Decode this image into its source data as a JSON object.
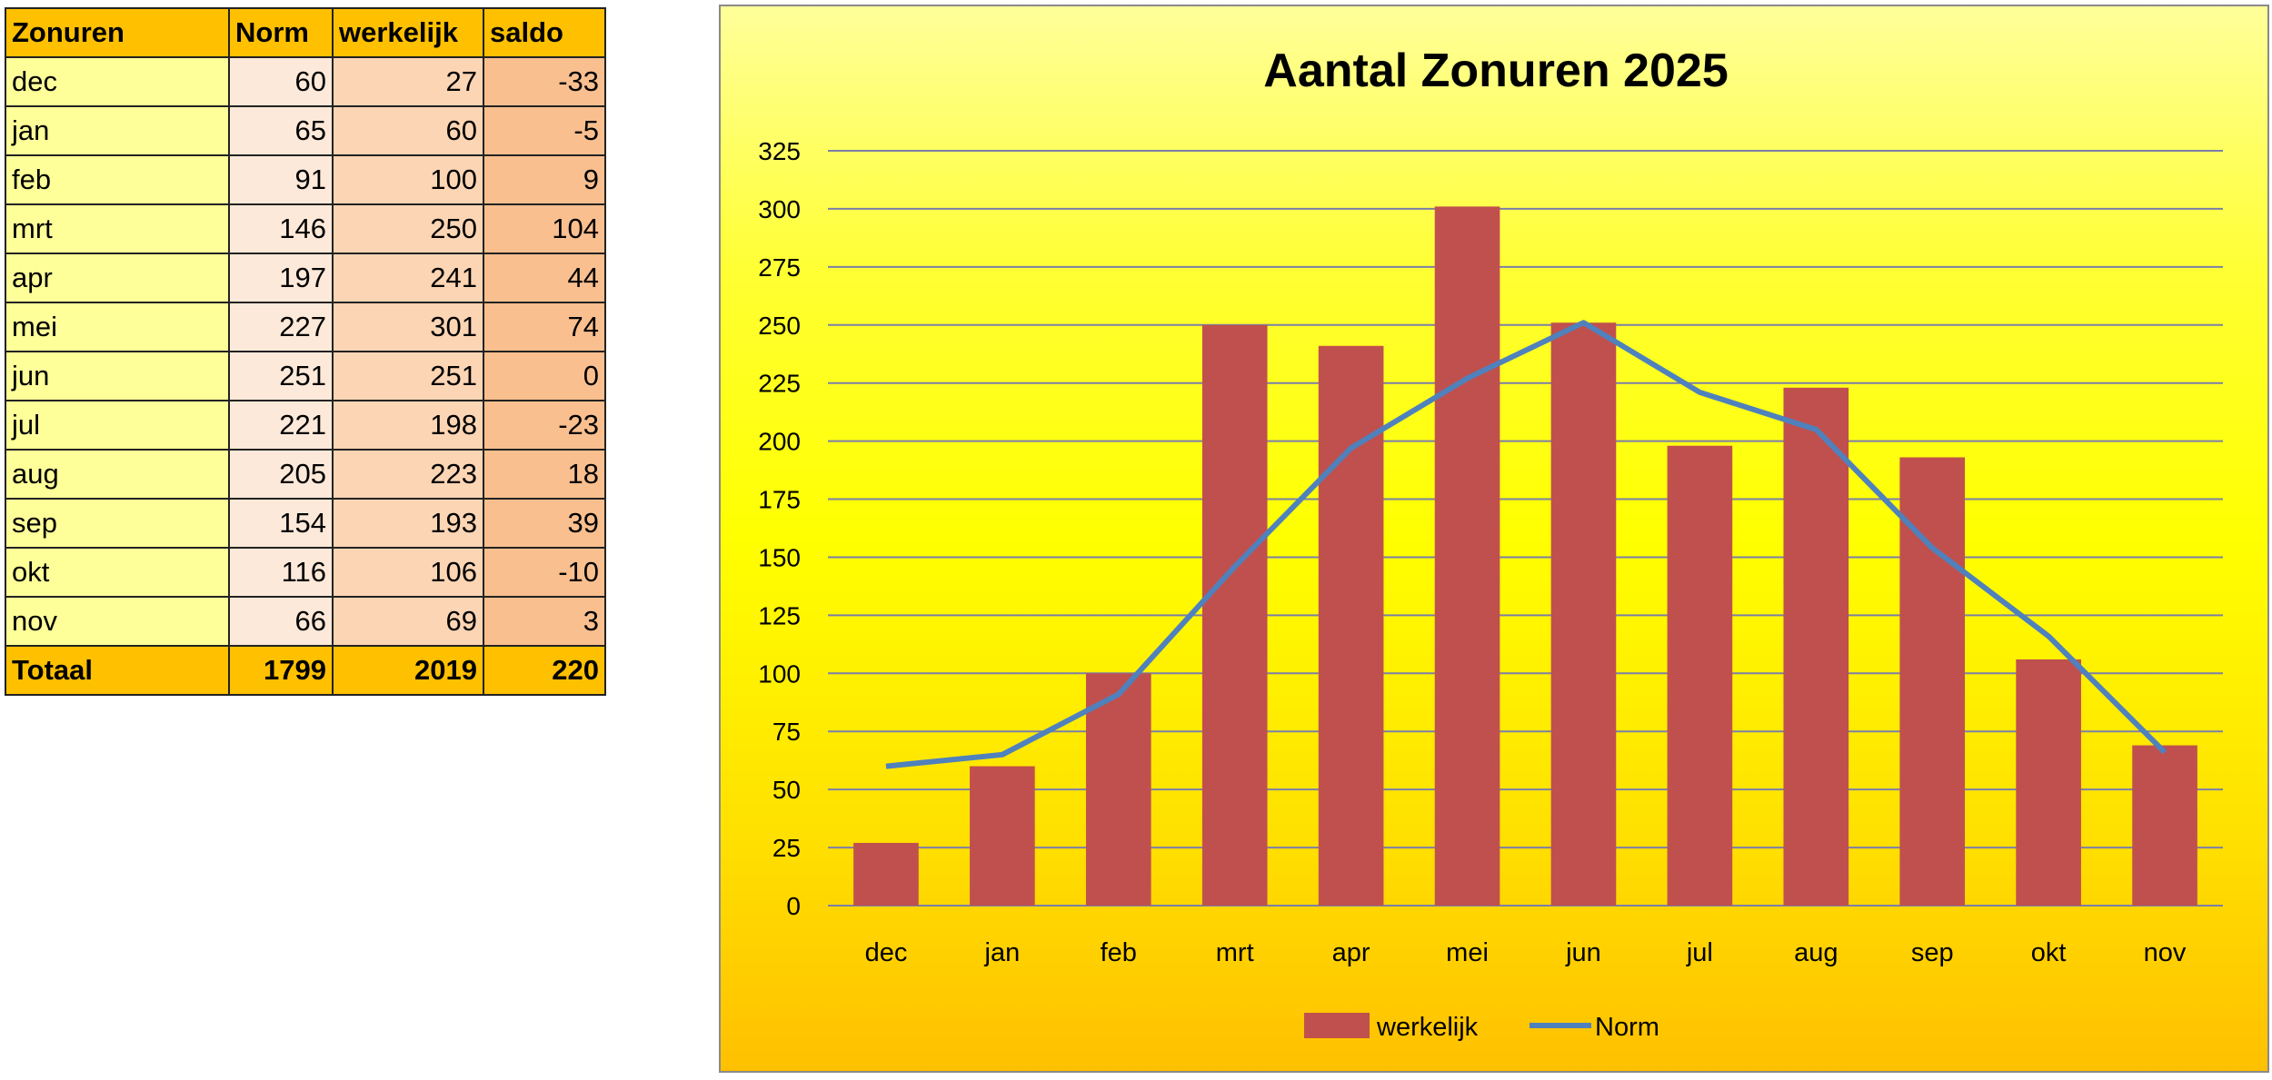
{
  "table": {
    "headers": [
      "Zonuren",
      "Norm",
      "werkelijk",
      "saldo"
    ],
    "rows": [
      [
        "dec",
        "60",
        "27",
        "-33"
      ],
      [
        "jan",
        "65",
        "60",
        "-5"
      ],
      [
        "feb",
        "91",
        "100",
        "9"
      ],
      [
        "mrt",
        "146",
        "250",
        "104"
      ],
      [
        "apr",
        "197",
        "241",
        "44"
      ],
      [
        "mei",
        "227",
        "301",
        "74"
      ],
      [
        "jun",
        "251",
        "251",
        "0"
      ],
      [
        "jul",
        "221",
        "198",
        "-23"
      ],
      [
        "aug",
        "205",
        "223",
        "18"
      ],
      [
        "sep",
        "154",
        "193",
        "39"
      ],
      [
        "okt",
        "116",
        "106",
        "-10"
      ],
      [
        "nov",
        "66",
        "69",
        "3"
      ]
    ],
    "total": [
      "Totaal",
      "1799",
      "2019",
      "220"
    ]
  },
  "chart_data": {
    "type": "bar",
    "title": "Aantal Zonuren 2025",
    "categories": [
      "dec",
      "jan",
      "feb",
      "mrt",
      "apr",
      "mei",
      "jun",
      "jul",
      "aug",
      "sep",
      "okt",
      "nov"
    ],
    "series": [
      {
        "name": "werkelijk",
        "kind": "bar",
        "color": "#c0504d",
        "values": [
          27,
          60,
          100,
          250,
          241,
          301,
          251,
          198,
          223,
          193,
          106,
          69
        ]
      },
      {
        "name": "Norm",
        "kind": "line",
        "color": "#4f81bd",
        "values": [
          60,
          65,
          91,
          146,
          197,
          227,
          251,
          221,
          205,
          154,
          116,
          66
        ]
      }
    ],
    "ylim": [
      0,
      325
    ],
    "yticks": [
      "0",
      "25",
      "50",
      "75",
      "100",
      "125",
      "150",
      "175",
      "200",
      "225",
      "250",
      "275",
      "300",
      "325"
    ],
    "grid": true,
    "legend": "bottom"
  }
}
